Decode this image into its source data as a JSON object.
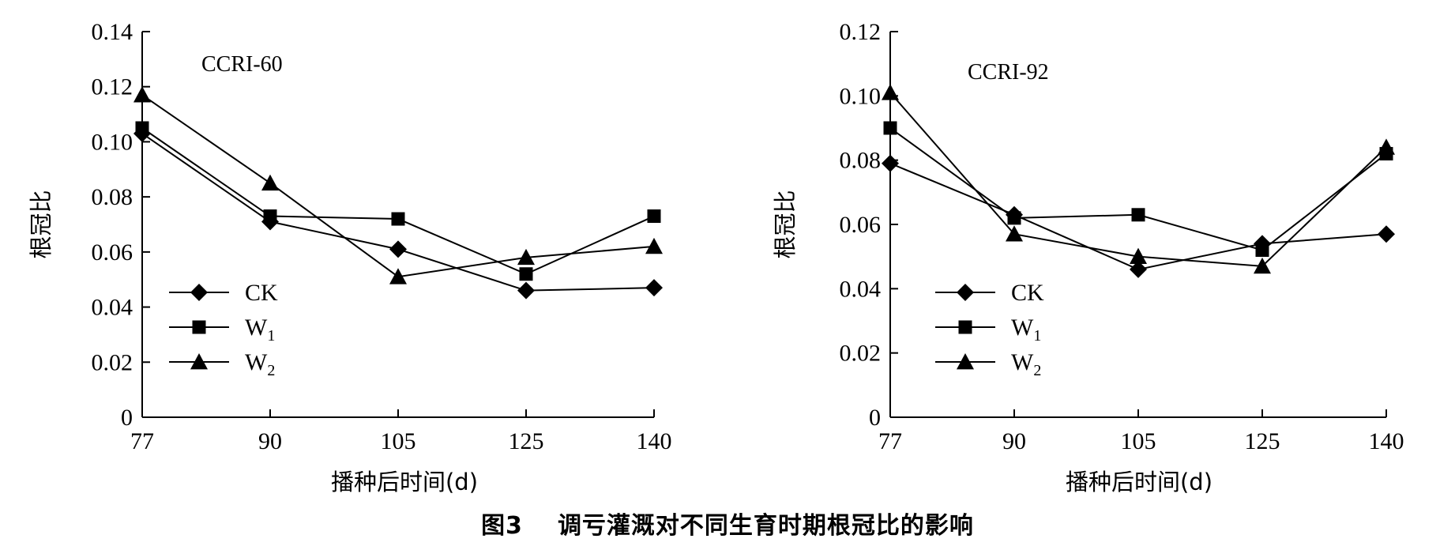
{
  "figure": {
    "caption_number": "图3",
    "caption_text": "调亏灌溉对不同生育时期根冠比的影响"
  },
  "chart_data": [
    {
      "type": "line",
      "title": "CCRI-60",
      "xlabel": "播种后时间(d)",
      "ylabel": "根冠比",
      "categories": [
        "77",
        "90",
        "105",
        "125",
        "140"
      ],
      "ylim": [
        0,
        0.14
      ],
      "yticks": [
        "0",
        "0.02",
        "0.04",
        "0.06",
        "0.08",
        "0.10",
        "0.12",
        "0.14"
      ],
      "grid": false,
      "legend_position": "bottom-left",
      "series": [
        {
          "name": "CK",
          "marker": "diamond",
          "values": [
            0.103,
            0.071,
            0.061,
            0.046,
            0.047
          ]
        },
        {
          "name": "W1",
          "marker": "square",
          "values": [
            0.105,
            0.073,
            0.072,
            0.052,
            0.073
          ]
        },
        {
          "name": "W2",
          "marker": "triangle",
          "values": [
            0.117,
            0.085,
            0.051,
            0.058,
            0.062
          ]
        }
      ]
    },
    {
      "type": "line",
      "title": "CCRI-92",
      "xlabel": "播种后时间(d)",
      "ylabel": "根冠比",
      "categories": [
        "77",
        "90",
        "105",
        "125",
        "140"
      ],
      "ylim": [
        0,
        0.12
      ],
      "yticks": [
        "0",
        "0.02",
        "0.04",
        "0.06",
        "0.08",
        "0.10",
        "0.12"
      ],
      "grid": false,
      "legend_position": "bottom-left",
      "series": [
        {
          "name": "CK",
          "marker": "diamond",
          "values": [
            0.079,
            0.063,
            0.046,
            0.054,
            0.057
          ]
        },
        {
          "name": "W1",
          "marker": "square",
          "values": [
            0.09,
            0.062,
            0.063,
            0.052,
            0.082
          ]
        },
        {
          "name": "W2",
          "marker": "triangle",
          "values": [
            0.101,
            0.057,
            0.05,
            0.047,
            0.084
          ]
        }
      ]
    }
  ]
}
